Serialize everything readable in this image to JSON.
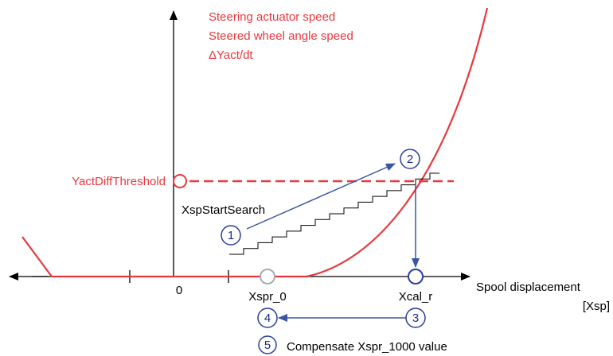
{
  "axis_title": [
    "Steering actuator speed",
    "Steered wheel angle speed",
    "ΔYact/dt"
  ],
  "threshold_label": "YactDiffThreshold",
  "search_label": "XspStartSearch",
  "x_axis": {
    "origin": "0",
    "xspr_label": "Xspr_0",
    "xcal_label": "Xcal_r",
    "title": "Spool displacement",
    "unit": "[Xsp]"
  },
  "steps": [
    {
      "number": "1"
    },
    {
      "number": "2"
    },
    {
      "number": "3"
    },
    {
      "number": "4"
    },
    {
      "number": "5",
      "label": "Compensate Xspr_1000 value"
    }
  ]
}
